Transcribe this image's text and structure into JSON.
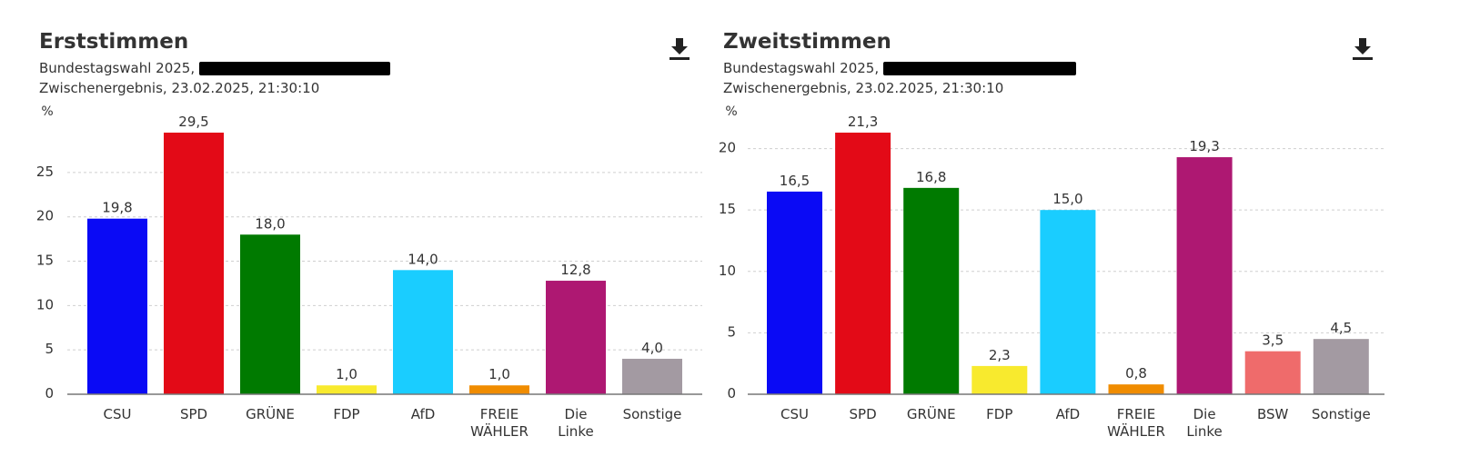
{
  "colors": {
    "CSU": "#0a0af5",
    "SPD": "#e30a17",
    "GRÜNE": "#007a00",
    "FDP": "#f8ea2e",
    "AfD": "#1acdff",
    "FREIE WÄHLER": "#f08c00",
    "Die Linke": "#ae1872",
    "BSW": "#ef6b6b",
    "Sonstige": "#a39aa2"
  },
  "panels": [
    {
      "title": "Erststimmen",
      "subtitle_prefix": "Bundestagswahl 2025,",
      "subtitle2": "Zwischenergebnis, 23.02.2025, 21:30:10",
      "download_icon": "download-icon"
    },
    {
      "title": "Zweitstimmen",
      "subtitle_prefix": "Bundestagswahl 2025,",
      "subtitle2": "Zwischenergebnis, 23.02.2025, 21:30:10",
      "download_icon": "download-icon"
    }
  ],
  "chart_data": [
    {
      "type": "bar",
      "title": "Erststimmen",
      "ylabel": "%",
      "ylim": [
        0,
        29.5
      ],
      "yticks": [
        "0",
        "5",
        "10",
        "15",
        "20",
        "25"
      ],
      "grid": true,
      "categories": [
        "CSU",
        "SPD",
        "GRÜNE",
        "FDP",
        "AfD",
        "FREIE WÄHLER",
        "Die Linke",
        "Sonstige"
      ],
      "category_lines": [
        [
          "CSU"
        ],
        [
          "SPD"
        ],
        [
          "GRÜNE"
        ],
        [
          "FDP"
        ],
        [
          "AfD"
        ],
        [
          "FREIE",
          "WÄHLER"
        ],
        [
          "Die",
          "Linke"
        ],
        [
          "Sonstige"
        ]
      ],
      "values": [
        19.8,
        29.5,
        18.0,
        1.0,
        14.0,
        1.0,
        12.8,
        4.0
      ],
      "value_labels": [
        "19,8",
        "29,5",
        "18,0",
        "1,0",
        "14,0",
        "1,0",
        "12,8",
        "4,0"
      ]
    },
    {
      "type": "bar",
      "title": "Zweitstimmen",
      "ylabel": "%",
      "ylim": [
        0,
        21.3
      ],
      "yticks": [
        "0",
        "5",
        "10",
        "15",
        "20"
      ],
      "grid": true,
      "categories": [
        "CSU",
        "SPD",
        "GRÜNE",
        "FDP",
        "AfD",
        "FREIE WÄHLER",
        "Die Linke",
        "BSW",
        "Sonstige"
      ],
      "category_lines": [
        [
          "CSU"
        ],
        [
          "SPD"
        ],
        [
          "GRÜNE"
        ],
        [
          "FDP"
        ],
        [
          "AfD"
        ],
        [
          "FREIE",
          "WÄHLER"
        ],
        [
          "Die",
          "Linke"
        ],
        [
          "BSW"
        ],
        [
          "Sonstige"
        ]
      ],
      "values": [
        16.5,
        21.3,
        16.8,
        2.3,
        15.0,
        0.8,
        19.3,
        3.5,
        4.5
      ],
      "value_labels": [
        "16,5",
        "21,3",
        "16,8",
        "2,3",
        "15,0",
        "0,8",
        "19,3",
        "3,5",
        "4,5"
      ]
    }
  ]
}
